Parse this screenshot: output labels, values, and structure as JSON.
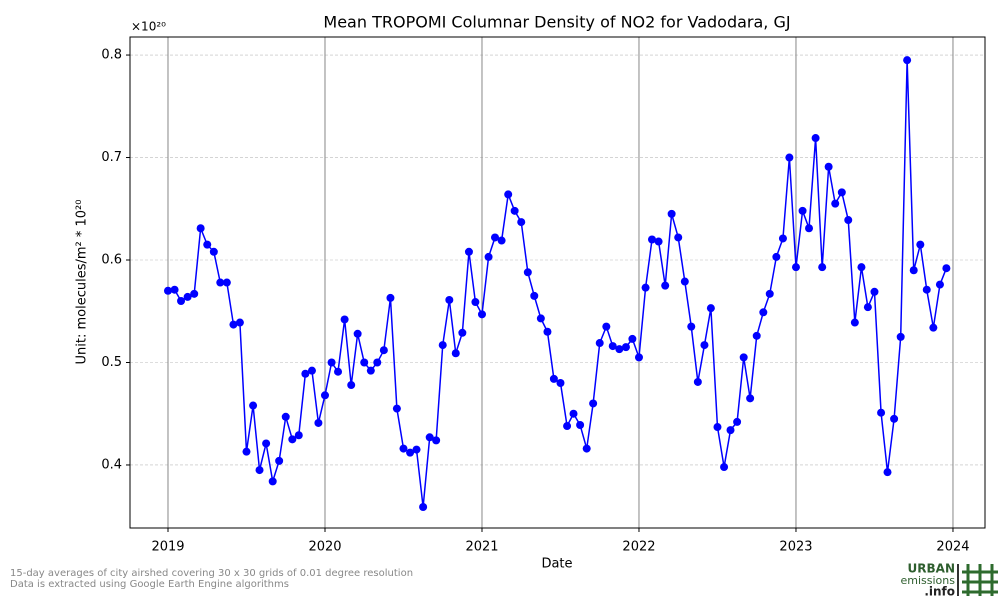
{
  "chart_data": {
    "type": "line",
    "title": "Mean TROPOMI Columnar Density of NO2 for Vadodara, GJ",
    "y_offset_label": "×10²⁰",
    "x_label": "Date",
    "y_label": "Unit: molecules/m² * 10²⁰",
    "footnotes": [
      "15-day averages of city airshed covering 30 x 30 grids of 0.01 degree resolution",
      "Data is extracted using Google Earth Engine algorithms"
    ],
    "logo": [
      "URBAN",
      "emissions",
      ".info"
    ],
    "grid": true,
    "series": [
      {
        "name": "NO2",
        "color": "#0000ff",
        "x": [
          2019,
          2019.042,
          2019.083,
          2019.125,
          2019.167,
          2019.208,
          2019.25,
          2019.292,
          2019.333,
          2019.375,
          2019.417,
          2019.458,
          2019.5,
          2019.542,
          2019.583,
          2019.625,
          2019.667,
          2019.708,
          2019.75,
          2019.792,
          2019.833,
          2019.875,
          2019.917,
          2019.958,
          2020,
          2020.042,
          2020.083,
          2020.125,
          2020.167,
          2020.208,
          2020.25,
          2020.292,
          2020.333,
          2020.375,
          2020.417,
          2020.458,
          2020.5,
          2020.542,
          2020.583,
          2020.625,
          2020.667,
          2020.708,
          2020.75,
          2020.792,
          2020.833,
          2020.875,
          2020.917,
          2020.958,
          2021,
          2021.042,
          2021.083,
          2021.125,
          2021.167,
          2021.208,
          2021.25,
          2021.292,
          2021.333,
          2021.375,
          2021.417,
          2021.458,
          2021.5,
          2021.542,
          2021.583,
          2021.625,
          2021.667,
          2021.708,
          2021.75,
          2021.792,
          2021.833,
          2021.875,
          2021.917,
          2021.958,
          2022,
          2022.042,
          2022.083,
          2022.125,
          2022.167,
          2022.208,
          2022.25,
          2022.292,
          2022.333,
          2022.375,
          2022.417,
          2022.458,
          2022.5,
          2022.542,
          2022.583,
          2022.625,
          2022.667,
          2022.708,
          2022.75,
          2022.792,
          2022.833,
          2022.875,
          2022.917,
          2022.958,
          2023,
          2023.042,
          2023.083,
          2023.125,
          2023.167,
          2023.208,
          2023.25,
          2023.292,
          2023.333,
          2023.375,
          2023.417,
          2023.458,
          2023.5,
          2023.542,
          2023.583,
          2023.625,
          2023.667,
          2023.708,
          2023.75,
          2023.792,
          2023.833,
          2023.875,
          2023.917,
          2023.958
        ],
        "values": [
          0.57,
          0.571,
          0.56,
          0.564,
          0.567,
          0.631,
          0.615,
          0.608,
          0.578,
          0.578,
          0.537,
          0.539,
          0.413,
          0.458,
          0.395,
          0.421,
          0.384,
          0.404,
          0.447,
          0.425,
          0.429,
          0.489,
          0.492,
          0.441,
          0.468,
          0.5,
          0.491,
          0.542,
          0.478,
          0.528,
          0.5,
          0.492,
          0.5,
          0.512,
          0.563,
          0.455,
          0.416,
          0.412,
          0.415,
          0.359,
          0.427,
          0.424,
          0.517,
          0.561,
          0.509,
          0.529,
          0.608,
          0.559,
          0.547,
          0.603,
          0.622,
          0.619,
          0.664,
          0.648,
          0.637,
          0.588,
          0.565,
          0.543,
          0.53,
          0.484,
          0.48,
          0.438,
          0.45,
          0.439,
          0.416,
          0.46,
          0.519,
          0.535,
          0.516,
          0.513,
          0.515,
          0.523,
          0.505,
          0.573,
          0.62,
          0.618,
          0.575,
          0.645,
          0.622,
          0.579,
          0.535,
          0.481,
          0.517,
          0.553,
          0.437,
          0.398,
          0.434,
          0.442,
          0.505,
          0.465,
          0.526,
          0.549,
          0.567,
          0.603,
          0.621,
          0.7,
          0.593,
          0.648,
          0.631,
          0.719,
          0.593,
          0.691,
          0.655,
          0.666,
          0.639,
          0.539,
          0.593,
          0.554,
          0.569,
          0.451,
          0.393,
          0.445,
          0.525,
          0.795,
          0.59,
          0.615,
          0.571,
          0.534,
          0.576,
          0.592
        ]
      }
    ],
    "xlim": [
      2018.758,
      2024.204
    ],
    "xticks": [
      2019,
      2020,
      2021,
      2022,
      2023,
      2024
    ],
    "ylim": [
      0.3385,
      0.8176
    ],
    "yticks": [
      0.4,
      0.5,
      0.6,
      0.7,
      0.8
    ]
  }
}
